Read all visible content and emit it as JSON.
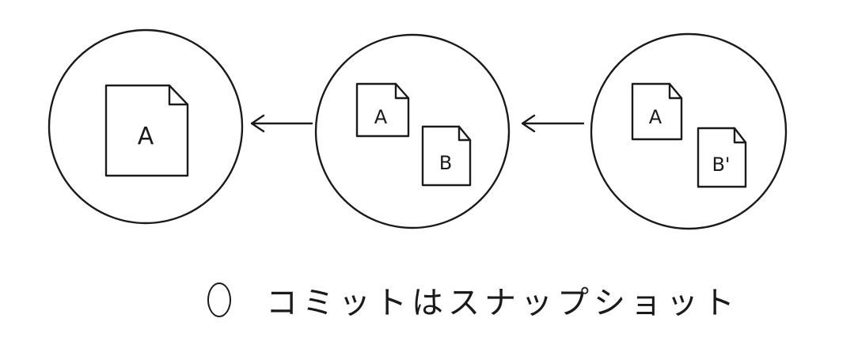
{
  "commits": [
    {
      "files": [
        {
          "label": "A"
        }
      ]
    },
    {
      "files": [
        {
          "label": "A"
        },
        {
          "label": "B"
        }
      ]
    },
    {
      "files": [
        {
          "label": "A"
        },
        {
          "label": "B'"
        }
      ]
    }
  ],
  "legend": {
    "text": "コミットはスナップショット",
    "icon": "circle-icon"
  }
}
